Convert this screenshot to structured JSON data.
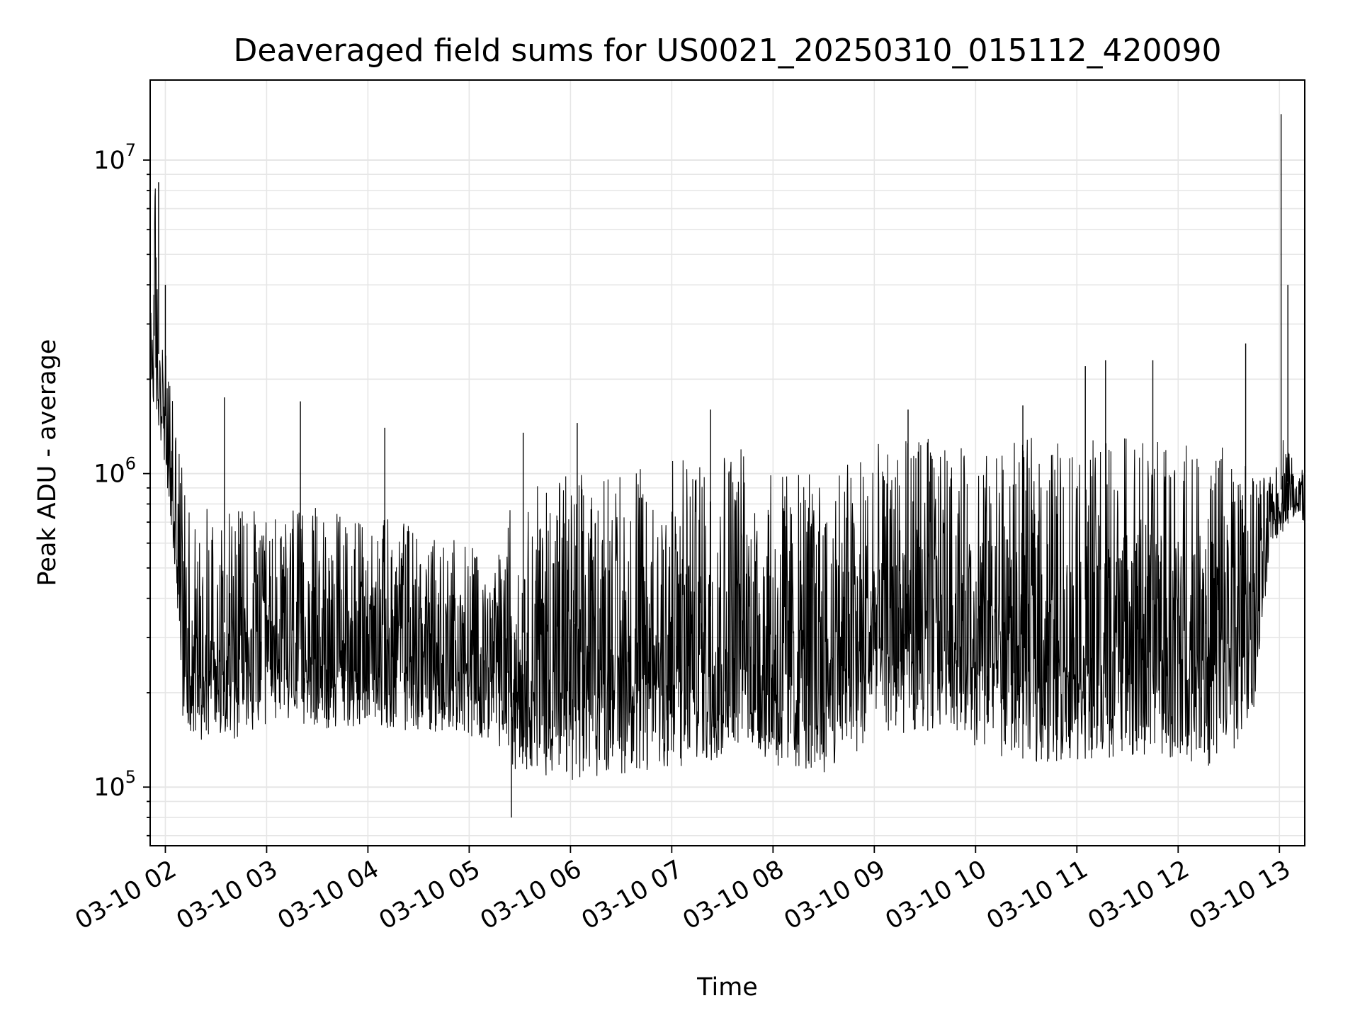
{
  "chart_data": {
    "type": "line",
    "title": "Deaveraged field sums for US0021_20250310_015112_420090",
    "xlabel": "Time",
    "ylabel": "Peak ADU - average",
    "yscale": "log",
    "ylim": [
      65000,
      18000000
    ],
    "xlim": [
      "2025-03-10 01:51",
      "2025-03-10 13:15"
    ],
    "grid": true,
    "line_color": "#000000",
    "grid_color": "#e6e6e6",
    "x_ticks": [
      "03-10 02",
      "03-10 03",
      "03-10 04",
      "03-10 05",
      "03-10 06",
      "03-10 07",
      "03-10 08",
      "03-10 09",
      "03-10 10",
      "03-10 11",
      "03-10 12",
      "03-10 13"
    ],
    "x_tick_times": [
      "2025-03-10 02:00",
      "2025-03-10 03:00",
      "2025-03-10 04:00",
      "2025-03-10 05:00",
      "2025-03-10 06:00",
      "2025-03-10 07:00",
      "2025-03-10 08:00",
      "2025-03-10 09:00",
      "2025-03-10 10:00",
      "2025-03-10 11:00",
      "2025-03-10 12:00",
      "2025-03-10 13:00"
    ],
    "y_ticks": [
      {
        "value": 100000,
        "base": "10",
        "exp": "5"
      },
      {
        "value": 1000000,
        "base": "10",
        "exp": "6"
      },
      {
        "value": 10000000,
        "base": "10",
        "exp": "7"
      }
    ],
    "series": [
      {
        "x": [
          "2025-03-10 01:51",
          "2025-03-10 01:54",
          "2025-03-10 01:57",
          "2025-03-10 02:03",
          "2025-03-10 02:06",
          "2025-03-10 02:10",
          "2025-03-10 02:15",
          "2025-03-10 02:20",
          "2025-03-10 02:30",
          "2025-03-10 02:45",
          "2025-03-10 03:00",
          "2025-03-10 03:20",
          "2025-03-10 03:40",
          "2025-03-10 04:00",
          "2025-03-10 04:20",
          "2025-03-10 04:40",
          "2025-03-10 05:00",
          "2025-03-10 05:15",
          "2025-03-10 05:25",
          "2025-03-10 05:35",
          "2025-03-10 06:00",
          "2025-03-10 06:30",
          "2025-03-10 07:00",
          "2025-03-10 07:25",
          "2025-03-10 07:35",
          "2025-03-10 08:00",
          "2025-03-10 08:30",
          "2025-03-10 08:45",
          "2025-03-10 09:00",
          "2025-03-10 09:30",
          "2025-03-10 09:45",
          "2025-03-10 10:00",
          "2025-03-10 10:30",
          "2025-03-10 11:00",
          "2025-03-10 11:30",
          "2025-03-10 12:00",
          "2025-03-10 12:30",
          "2025-03-10 12:45",
          "2025-03-10 12:55",
          "2025-03-10 13:04",
          "2025-03-10 13:07",
          "2025-03-10 13:15"
        ],
        "y_low": [
          1800000,
          1500000,
          1300000,
          700000,
          450000,
          170000,
          150000,
          140000,
          150000,
          140000,
          150000,
          160000,
          150000,
          160000,
          150000,
          150000,
          140000,
          145000,
          115000,
          110000,
          105000,
          110000,
          110000,
          120000,
          130000,
          115000,
          110000,
          120000,
          150000,
          145000,
          160000,
          130000,
          120000,
          120000,
          125000,
          120000,
          115000,
          180000,
          600000,
          650000,
          700000,
          700000
        ],
        "y_high": [
          5000000,
          8500000,
          3000000,
          2000000,
          1500000,
          1100000,
          900000,
          800000,
          750000,
          800000,
          750000,
          800000,
          750000,
          700000,
          750000,
          700000,
          600000,
          550000,
          800000,
          900000,
          1000000,
          1000000,
          1100000,
          1200000,
          1300000,
          1000000,
          1000000,
          1200000,
          1250000,
          1300000,
          1250000,
          1200000,
          1300000,
          1300000,
          1300000,
          1250000,
          1300000,
          1000000,
          1000000,
          1400000,
          1200000,
          1100000
        ],
        "spikes": [
          {
            "x": "2025-03-10 01:56",
            "y": 8500000
          },
          {
            "x": "2025-03-10 02:00",
            "y": 4000000
          },
          {
            "x": "2025-03-10 02:35",
            "y": 1750000
          },
          {
            "x": "2025-03-10 03:20",
            "y": 1700000
          },
          {
            "x": "2025-03-10 04:10",
            "y": 1400000
          },
          {
            "x": "2025-03-10 05:25",
            "y": 80000
          },
          {
            "x": "2025-03-10 05:32",
            "y": 1350000
          },
          {
            "x": "2025-03-10 06:04",
            "y": 1450000
          },
          {
            "x": "2025-03-10 07:23",
            "y": 1600000
          },
          {
            "x": "2025-03-10 09:20",
            "y": 1600000
          },
          {
            "x": "2025-03-10 10:28",
            "y": 1650000
          },
          {
            "x": "2025-03-10 11:05",
            "y": 2200000
          },
          {
            "x": "2025-03-10 11:17",
            "y": 2300000
          },
          {
            "x": "2025-03-10 11:45",
            "y": 2300000
          },
          {
            "x": "2025-03-10 12:40",
            "y": 2600000
          },
          {
            "x": "2025-03-10 13:01",
            "y": 14000000
          },
          {
            "x": "2025-03-10 13:05",
            "y": 4000000
          }
        ]
      }
    ]
  }
}
